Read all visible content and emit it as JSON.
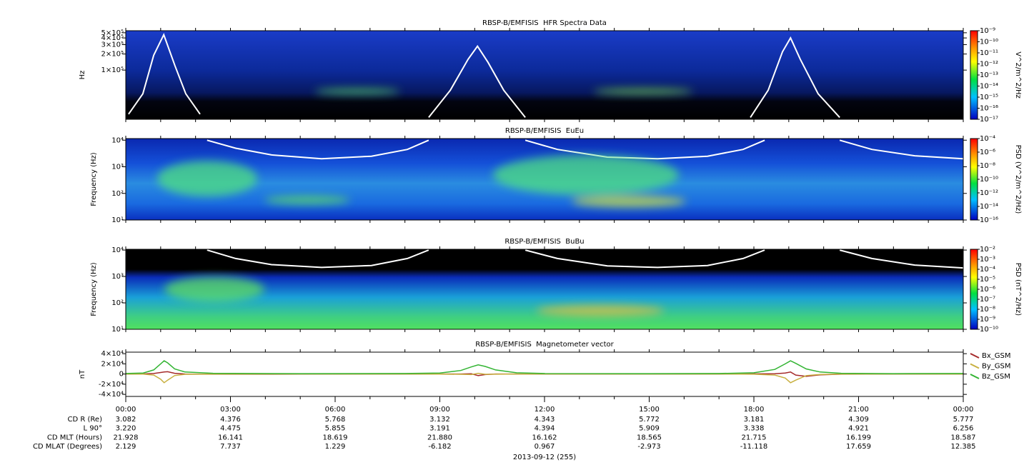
{
  "chart_data": [
    {
      "type": "spectrogram",
      "title": "RBSP-B/EMFISIS  HFR Spectra Data",
      "ylabel": "Hz",
      "log_y": true,
      "xlim": [
        0,
        24
      ],
      "ylim": [
        12000,
        546000
      ],
      "yticks": [
        {
          "value": 500000,
          "label": "5×10⁵"
        },
        {
          "value": 400000,
          "label": "4×10⁵"
        },
        {
          "value": 300000,
          "label": "3×10⁵"
        },
        {
          "value": 200000,
          "label": "2×10⁵"
        },
        {
          "value": 100000,
          "label": "1×10⁵"
        }
      ],
      "colorbar": {
        "label": "V^2/m^2/Hz",
        "log": true,
        "lim": [
          1e-17,
          1e-09
        ],
        "ticks": [
          {
            "value": 1e-09,
            "label": "10⁻⁹"
          },
          {
            "value": 1e-10,
            "label": "10⁻¹⁰"
          },
          {
            "value": 1e-11,
            "label": "10⁻¹¹"
          },
          {
            "value": 1e-12,
            "label": "10⁻¹²"
          },
          {
            "value": 1e-13,
            "label": "10⁻¹³"
          },
          {
            "value": 1e-14,
            "label": "10⁻¹⁴"
          },
          {
            "value": 1e-15,
            "label": "10⁻¹⁵"
          },
          {
            "value": 1e-16,
            "label": "10⁻¹⁶"
          },
          {
            "value": 1e-17,
            "label": "10⁻¹⁷"
          }
        ]
      },
      "overlay": {
        "color": "#ffffff",
        "x": [
          0.08,
          0.49,
          0.8,
          1.09,
          1.41,
          1.72,
          2.13,
          null,
          8.68,
          9.3,
          9.81,
          10.08,
          10.38,
          10.83,
          11.45,
          null,
          17.9,
          18.41,
          18.82,
          19.05,
          19.33,
          19.84,
          20.46
        ],
        "values": [
          15000,
          36000,
          190000,
          460000,
          120000,
          36000,
          15000,
          null,
          13000,
          42000,
          160000,
          280000,
          140000,
          42000,
          13000,
          null,
          13000,
          42000,
          220000,
          400000,
          160000,
          36000,
          13000
        ]
      }
    },
    {
      "type": "spectrogram",
      "title": "RBSP-B/EMFISIS  EuEu",
      "ylabel": "Frequency (Hz)",
      "log_y": true,
      "xlim": [
        0,
        24
      ],
      "ylim": [
        10,
        11500
      ],
      "yticks": [
        {
          "value": 10000,
          "label": "10⁴"
        },
        {
          "value": 1000,
          "label": "10³"
        },
        {
          "value": 100,
          "label": "10²"
        },
        {
          "value": 10,
          "label": "10¹"
        }
      ],
      "colorbar": {
        "label": "PSD (V^2/m^2/Hz)",
        "log": true,
        "lim": [
          1e-16,
          0.0001
        ],
        "ticks": [
          {
            "value": 0.0001,
            "label": "10⁻⁴"
          },
          {
            "value": 1e-06,
            "label": "10⁻⁶"
          },
          {
            "value": 1e-08,
            "label": "10⁻⁸"
          },
          {
            "value": 1e-10,
            "label": "10⁻¹⁰"
          },
          {
            "value": 1e-12,
            "label": "10⁻¹²"
          },
          {
            "value": 1e-14,
            "label": "10⁻¹⁴"
          },
          {
            "value": 1e-16,
            "label": "10⁻¹⁶"
          }
        ]
      },
      "overlay": {
        "color": "#ffffff",
        "x": [
          2.33,
          3.15,
          4.18,
          5.61,
          7.04,
          8.07,
          8.68,
          null,
          11.45,
          12.37,
          13.8,
          15.24,
          16.67,
          17.69,
          18.31,
          null,
          20.46,
          21.38,
          22.61,
          24
        ],
        "values": [
          10000,
          5000,
          2800,
          2000,
          2500,
          4500,
          10000,
          null,
          10000,
          4500,
          2300,
          2000,
          2500,
          4500,
          10000,
          null,
          10000,
          4500,
          2600,
          2000
        ]
      }
    },
    {
      "type": "spectrogram",
      "title": "RBSP-B/EMFISIS  BuBu",
      "ylabel": "Frequency (Hz)",
      "log_y": true,
      "xlim": [
        0,
        24
      ],
      "ylim": [
        10,
        10700
      ],
      "yticks": [
        {
          "value": 10000,
          "label": "10⁴"
        },
        {
          "value": 1000,
          "label": "10³"
        },
        {
          "value": 100,
          "label": "10²"
        },
        {
          "value": 10,
          "label": "10¹"
        }
      ],
      "colorbar": {
        "label": "PSD (nT^2/Hz)",
        "log": true,
        "lim": [
          1e-10,
          0.01
        ],
        "ticks": [
          {
            "value": 0.01,
            "label": "10⁻²"
          },
          {
            "value": 0.001,
            "label": "10⁻³"
          },
          {
            "value": 0.0001,
            "label": "10⁻⁴"
          },
          {
            "value": 1e-05,
            "label": "10⁻⁵"
          },
          {
            "value": 1e-06,
            "label": "10⁻⁶"
          },
          {
            "value": 1e-07,
            "label": "10⁻⁷"
          },
          {
            "value": 1e-08,
            "label": "10⁻⁸"
          },
          {
            "value": 1e-09,
            "label": "10⁻⁹"
          },
          {
            "value": 1e-10,
            "label": "10⁻¹⁰"
          }
        ]
      },
      "overlay": {
        "color": "#ffffff",
        "x": [
          2.33,
          3.15,
          4.18,
          5.61,
          7.04,
          8.07,
          8.68,
          null,
          11.45,
          12.37,
          13.8,
          15.24,
          16.67,
          17.69,
          18.31,
          null,
          20.46,
          21.38,
          22.61,
          24
        ],
        "values": [
          10000,
          4800,
          2800,
          2200,
          2600,
          4800,
          10000,
          null,
          10000,
          4800,
          2500,
          2200,
          2600,
          4800,
          10000,
          null,
          10000,
          4800,
          2700,
          2100
        ]
      }
    },
    {
      "type": "line",
      "title": "RBSP-B/EMFISIS  Magnetometer vector",
      "ylabel": "nT",
      "xlim": [
        0,
        24
      ],
      "ylim": [
        -44000,
        43000
      ],
      "yticks": [
        {
          "value": 40000,
          "label": "4×10⁴"
        },
        {
          "value": 20000,
          "label": "2×10⁴"
        },
        0,
        {
          "value": -20000,
          "label": "-2×10⁴"
        },
        {
          "value": -40000,
          "label": "-4×10⁴"
        }
      ],
      "xticks": [
        {
          "value": 0,
          "label": "00:00"
        },
        {
          "value": 3,
          "label": "03:00"
        },
        {
          "value": 6,
          "label": "06:00"
        },
        {
          "value": 9,
          "label": "09:00"
        },
        {
          "value": 12,
          "label": "12:00"
        },
        {
          "value": 15,
          "label": "15:00"
        },
        {
          "value": 18,
          "label": "18:00"
        },
        {
          "value": 21,
          "label": "21:00"
        },
        {
          "value": 24,
          "label": "00:00"
        }
      ],
      "legend": "outside-right",
      "x": [
        0,
        0.5,
        0.8,
        1.0,
        1.1,
        1.2,
        1.4,
        1.7,
        2.5,
        5,
        8,
        9,
        9.6,
        9.9,
        10.1,
        10.3,
        10.6,
        11.2,
        12,
        15,
        17,
        18,
        18.6,
        18.9,
        19.05,
        19.2,
        19.5,
        19.9,
        20.5,
        22,
        24
      ],
      "series": [
        {
          "name": "Bx_GSM",
          "color": "#a52a2a",
          "values": [
            0,
            200,
            1000,
            3000,
            4000,
            4500,
            1500,
            0,
            -300,
            -200,
            0,
            0,
            0,
            500,
            -3000,
            -1000,
            0,
            0,
            0,
            0,
            0,
            300,
            500,
            2000,
            4000,
            -2000,
            -4500,
            -1500,
            -300,
            0,
            0
          ]
        },
        {
          "name": "By_GSM",
          "color": "#c8b040",
          "values": [
            0,
            -200,
            -2000,
            -10000,
            -17000,
            -12000,
            -3000,
            -500,
            -200,
            0,
            0,
            -200,
            -500,
            -1000,
            1500,
            -500,
            -300,
            0,
            0,
            0,
            0,
            -300,
            -2000,
            -8000,
            -17000,
            -12000,
            -3000,
            -800,
            -200,
            0,
            0
          ]
        },
        {
          "name": "Bz_GSM",
          "color": "#32b432",
          "values": [
            1000,
            2000,
            8000,
            20000,
            26000,
            22000,
            10000,
            4000,
            1500,
            800,
            1000,
            2000,
            7000,
            14000,
            18000,
            15000,
            8000,
            2500,
            1000,
            800,
            1000,
            2500,
            9000,
            20000,
            26000,
            21000,
            10000,
            4000,
            1500,
            800,
            1000
          ]
        }
      ]
    }
  ],
  "ephemeris": {
    "rows": [
      {
        "label": "CD R (Re)",
        "values": [
          "3.082",
          "4.376",
          "5.768",
          "3.132",
          "4.343",
          "5.772",
          "3.181",
          "4.309",
          "5.777"
        ]
      },
      {
        "label": "L 90°",
        "values": [
          "3.220",
          "4.475",
          "5.855",
          "3.191",
          "4.394",
          "5.909",
          "3.338",
          "4.921",
          "6.256"
        ]
      },
      {
        "label": "CD MLT (Hours)",
        "values": [
          "21.928",
          "16.141",
          "18.619",
          "21.880",
          "16.162",
          "18.565",
          "21.715",
          "16.199",
          "18.587"
        ]
      },
      {
        "label": "CD MLAT (Degrees)",
        "values": [
          "2.129",
          "7.737",
          "1.229",
          "-6.182",
          "0.967",
          "-2.973",
          "-11.118",
          "17.659",
          "12.385"
        ]
      }
    ],
    "date": "2013-09-12 (255)"
  }
}
